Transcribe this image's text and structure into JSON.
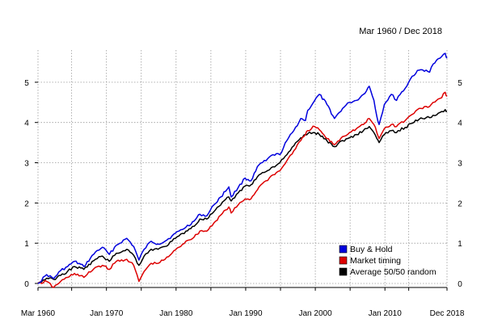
{
  "header": {
    "date_range": "Mar 1960 / Dec 2018"
  },
  "chart_data": {
    "type": "line",
    "x_range": [
      "1960-03",
      "2018-12"
    ],
    "ylim": [
      -0.1,
      5.8
    ],
    "y_ticks": [
      0,
      1,
      2,
      3,
      4,
      5
    ],
    "y_tick_labels": [
      "0",
      "1",
      "2",
      "3",
      "4",
      "5"
    ],
    "y_axis_sides": "left-and-right",
    "x_ticks": [
      "1960-03",
      "1965-01",
      "1970-01",
      "1975-01",
      "1980-01",
      "1985-01",
      "1990-01",
      "1995-01",
      "2000-01",
      "2005-01",
      "2010-01",
      "2013-06",
      "2018-12"
    ],
    "x_tick_labels": [
      "Mar 1960",
      "",
      "Jan 1970",
      "",
      "Jan 1980",
      "",
      "Jan 1990",
      "",
      "Jan 2000",
      "",
      "Jan 2010",
      "",
      "Dec 2018"
    ],
    "grid": true,
    "grid_style": "dotted",
    "legend_position": "bottom-right",
    "series": [
      {
        "name": "Buy & Hold",
        "color": "#0000dd",
        "x": [
          "1960-03",
          "1961-06",
          "1962-06",
          "1963-06",
          "1964-06",
          "1965-06",
          "1966-10",
          "1968-06",
          "1969-06",
          "1970-06",
          "1971-06",
          "1972-12",
          "1973-12",
          "1974-09",
          "1975-06",
          "1976-06",
          "1977-06",
          "1978-06",
          "1979-06",
          "1980-06",
          "1981-06",
          "1982-08",
          "1983-06",
          "1984-06",
          "1985-06",
          "1986-06",
          "1987-08",
          "1987-12",
          "1988-12",
          "1989-12",
          "1990-10",
          "1991-12",
          "1992-12",
          "1993-12",
          "1994-12",
          "1995-12",
          "1996-12",
          "1997-12",
          "1998-08",
          "1998-12",
          "1999-12",
          "2000-08",
          "2001-09",
          "2002-10",
          "2003-12",
          "2004-12",
          "2005-12",
          "2006-12",
          "2007-10",
          "2008-06",
          "2008-11",
          "2009-03",
          "2009-12",
          "2010-12",
          "2011-09",
          "2011-12",
          "2012-12",
          "2013-12",
          "2014-12",
          "2015-12",
          "2016-06",
          "2016-12",
          "2017-12",
          "2018-09",
          "2018-12"
        ],
        "values": [
          0.0,
          0.22,
          0.12,
          0.32,
          0.42,
          0.55,
          0.42,
          0.78,
          0.9,
          0.72,
          0.95,
          1.12,
          0.92,
          0.58,
          0.85,
          1.05,
          0.98,
          1.05,
          1.18,
          1.3,
          1.4,
          1.55,
          1.72,
          1.68,
          1.95,
          2.15,
          2.4,
          2.15,
          2.38,
          2.62,
          2.55,
          2.95,
          3.05,
          3.2,
          3.2,
          3.55,
          3.8,
          4.1,
          4.05,
          4.3,
          4.55,
          4.7,
          4.45,
          4.1,
          4.35,
          4.5,
          4.55,
          4.7,
          4.9,
          4.55,
          4.15,
          3.95,
          4.45,
          4.7,
          4.55,
          4.65,
          4.85,
          5.15,
          5.3,
          5.3,
          5.25,
          5.45,
          5.6,
          5.72,
          5.6
        ]
      },
      {
        "name": "Market timing",
        "color": "#dd0000",
        "x": [
          "1960-03",
          "1961-06",
          "1962-06",
          "1963-06",
          "1964-06",
          "1965-06",
          "1966-10",
          "1968-06",
          "1969-06",
          "1970-06",
          "1971-06",
          "1972-12",
          "1973-12",
          "1974-09",
          "1975-06",
          "1976-06",
          "1977-06",
          "1978-06",
          "1979-06",
          "1980-06",
          "1981-06",
          "1982-08",
          "1983-06",
          "1984-06",
          "1985-06",
          "1986-06",
          "1987-08",
          "1987-12",
          "1988-12",
          "1989-12",
          "1990-10",
          "1991-12",
          "1992-12",
          "1993-12",
          "1994-12",
          "1995-12",
          "1996-12",
          "1997-12",
          "1998-08",
          "1998-12",
          "1999-12",
          "2000-08",
          "2001-09",
          "2002-10",
          "2003-12",
          "2004-12",
          "2005-12",
          "2006-12",
          "2007-10",
          "2008-06",
          "2008-11",
          "2009-03",
          "2009-12",
          "2010-12",
          "2011-09",
          "2011-12",
          "2012-12",
          "2013-12",
          "2014-12",
          "2015-12",
          "2016-06",
          "2016-12",
          "2017-12",
          "2018-09",
          "2018-12"
        ],
        "values": [
          0.0,
          0.05,
          -0.1,
          0.05,
          0.15,
          0.25,
          0.15,
          0.4,
          0.45,
          0.35,
          0.55,
          0.6,
          0.45,
          0.05,
          0.3,
          0.5,
          0.5,
          0.6,
          0.75,
          0.9,
          1.05,
          1.15,
          1.3,
          1.3,
          1.5,
          1.7,
          1.9,
          1.75,
          1.95,
          2.1,
          2.1,
          2.4,
          2.55,
          2.7,
          2.8,
          3.05,
          3.3,
          3.55,
          3.7,
          3.8,
          3.9,
          3.82,
          3.6,
          3.45,
          3.65,
          3.75,
          3.85,
          3.95,
          4.1,
          3.95,
          3.75,
          3.6,
          3.85,
          3.95,
          3.9,
          3.95,
          4.05,
          4.2,
          4.35,
          4.4,
          4.4,
          4.5,
          4.6,
          4.75,
          4.65
        ]
      },
      {
        "name": "Average 50/50 random",
        "color": "#000000",
        "x": [
          "1960-03",
          "1961-06",
          "1962-06",
          "1963-06",
          "1964-06",
          "1965-06",
          "1966-10",
          "1968-06",
          "1969-06",
          "1970-06",
          "1971-06",
          "1972-12",
          "1973-12",
          "1974-09",
          "1975-06",
          "1976-06",
          "1977-06",
          "1978-06",
          "1979-06",
          "1980-06",
          "1981-06",
          "1982-08",
          "1983-06",
          "1984-06",
          "1985-06",
          "1986-06",
          "1987-08",
          "1987-12",
          "1988-12",
          "1989-12",
          "1990-10",
          "1991-12",
          "1992-12",
          "1993-12",
          "1994-12",
          "1995-12",
          "1996-12",
          "1997-12",
          "1998-08",
          "1998-12",
          "1999-12",
          "2000-08",
          "2001-09",
          "2002-10",
          "2003-12",
          "2004-12",
          "2005-12",
          "2006-12",
          "2007-10",
          "2008-06",
          "2008-11",
          "2009-03",
          "2009-12",
          "2010-12",
          "2011-09",
          "2011-12",
          "2012-12",
          "2013-12",
          "2014-12",
          "2015-12",
          "2016-06",
          "2016-12",
          "2017-12",
          "2018-09",
          "2018-12"
        ],
        "values": [
          0.0,
          0.13,
          0.1,
          0.2,
          0.3,
          0.42,
          0.35,
          0.6,
          0.68,
          0.55,
          0.75,
          0.85,
          0.7,
          0.45,
          0.68,
          0.85,
          0.85,
          0.92,
          1.05,
          1.18,
          1.3,
          1.42,
          1.6,
          1.6,
          1.78,
          1.95,
          2.15,
          2.05,
          2.25,
          2.42,
          2.45,
          2.7,
          2.78,
          2.9,
          3.0,
          3.2,
          3.42,
          3.62,
          3.7,
          3.72,
          3.75,
          3.7,
          3.55,
          3.4,
          3.55,
          3.62,
          3.7,
          3.8,
          3.9,
          3.75,
          3.6,
          3.5,
          3.7,
          3.8,
          3.75,
          3.8,
          3.88,
          3.98,
          4.08,
          4.12,
          4.12,
          4.18,
          4.25,
          4.32,
          4.28
        ]
      }
    ]
  }
}
